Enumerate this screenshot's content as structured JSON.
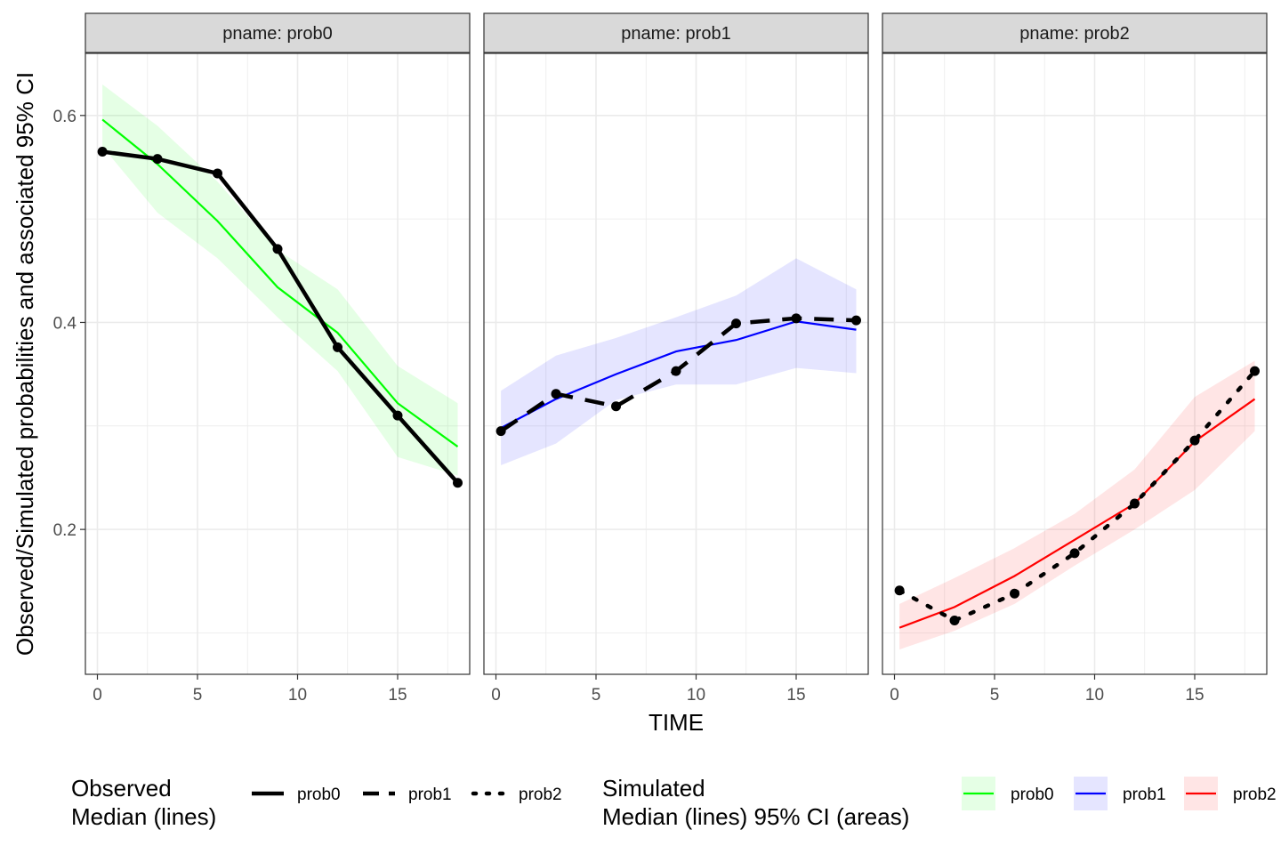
{
  "colors": {
    "prob0": "#00FF00",
    "prob1": "#0000FF",
    "prob2": "#FF0000",
    "observed": "#000000",
    "strip_bg": "#D9D9D9",
    "grid": "#EBEBEB"
  },
  "chart_data": {
    "type": "line",
    "xlabel": "TIME",
    "ylabel": "Observed/Simulated probabilities and associated 95% CI",
    "xlim": [
      -0.6,
      18.6
    ],
    "ylim": [
      0.06,
      0.66
    ],
    "x_ticks": [
      0,
      5,
      10,
      15
    ],
    "x_tick_labels": [
      "0",
      "5",
      "10",
      "15"
    ],
    "y_ticks": [
      0.2,
      0.4,
      0.6
    ],
    "y_tick_labels": [
      "0.2",
      "0.4",
      "0.6"
    ],
    "grid": true,
    "legend_position": "bottom",
    "panels": [
      {
        "strip": "pname: prob0",
        "key": "prob0",
        "observed": {
          "name": "prob0",
          "linetype": "solid",
          "x": [
            0.25,
            3,
            6,
            9,
            12,
            15,
            18
          ],
          "y": [
            0.565,
            0.558,
            0.544,
            0.471,
            0.376,
            0.31,
            0.245
          ]
        },
        "simulated": {
          "name": "prob0",
          "x": [
            0.25,
            3,
            6,
            9,
            12,
            15,
            18
          ],
          "median": [
            0.596,
            0.553,
            0.498,
            0.434,
            0.39,
            0.322,
            0.28
          ],
          "lower": [
            0.57,
            0.506,
            0.462,
            0.405,
            0.353,
            0.27,
            0.252
          ],
          "upper": [
            0.63,
            0.59,
            0.536,
            0.47,
            0.432,
            0.358,
            0.322
          ]
        }
      },
      {
        "strip": "pname: prob1",
        "key": "prob1",
        "observed": {
          "name": "prob1",
          "linetype": "dashed",
          "x": [
            0.25,
            3,
            6,
            9,
            12,
            15,
            18
          ],
          "y": [
            0.295,
            0.331,
            0.319,
            0.353,
            0.399,
            0.404,
            0.402
          ]
        },
        "simulated": {
          "name": "prob1",
          "x": [
            0.25,
            3,
            6,
            9,
            12,
            15,
            18
          ],
          "median": [
            0.298,
            0.326,
            0.35,
            0.372,
            0.383,
            0.401,
            0.393
          ],
          "lower": [
            0.262,
            0.283,
            0.325,
            0.34,
            0.34,
            0.356,
            0.351
          ],
          "upper": [
            0.334,
            0.368,
            0.385,
            0.405,
            0.426,
            0.462,
            0.432
          ]
        }
      },
      {
        "strip": "pname: prob2",
        "key": "prob2",
        "observed": {
          "name": "prob2",
          "linetype": "dotted",
          "x": [
            0.25,
            3,
            6,
            9,
            12,
            15,
            18
          ],
          "y": [
            0.141,
            0.112,
            0.138,
            0.177,
            0.225,
            0.286,
            0.353
          ]
        },
        "simulated": {
          "name": "prob2",
          "x": [
            0.25,
            3,
            6,
            9,
            12,
            15,
            18
          ],
          "median": [
            0.105,
            0.125,
            0.155,
            0.19,
            0.225,
            0.285,
            0.326
          ],
          "lower": [
            0.084,
            0.102,
            0.128,
            0.165,
            0.2,
            0.238,
            0.295
          ],
          "upper": [
            0.128,
            0.153,
            0.182,
            0.215,
            0.258,
            0.328,
            0.363
          ]
        }
      }
    ],
    "legends": {
      "observed": {
        "title_line1": "Observed",
        "title_line2": "Median (lines)",
        "items": [
          "prob0",
          "prob1",
          "prob2"
        ]
      },
      "simulated": {
        "title_line1": "Simulated",
        "title_line2": "Median (lines) 95% CI (areas)",
        "items": [
          "prob0",
          "prob1",
          "prob2"
        ]
      }
    }
  }
}
